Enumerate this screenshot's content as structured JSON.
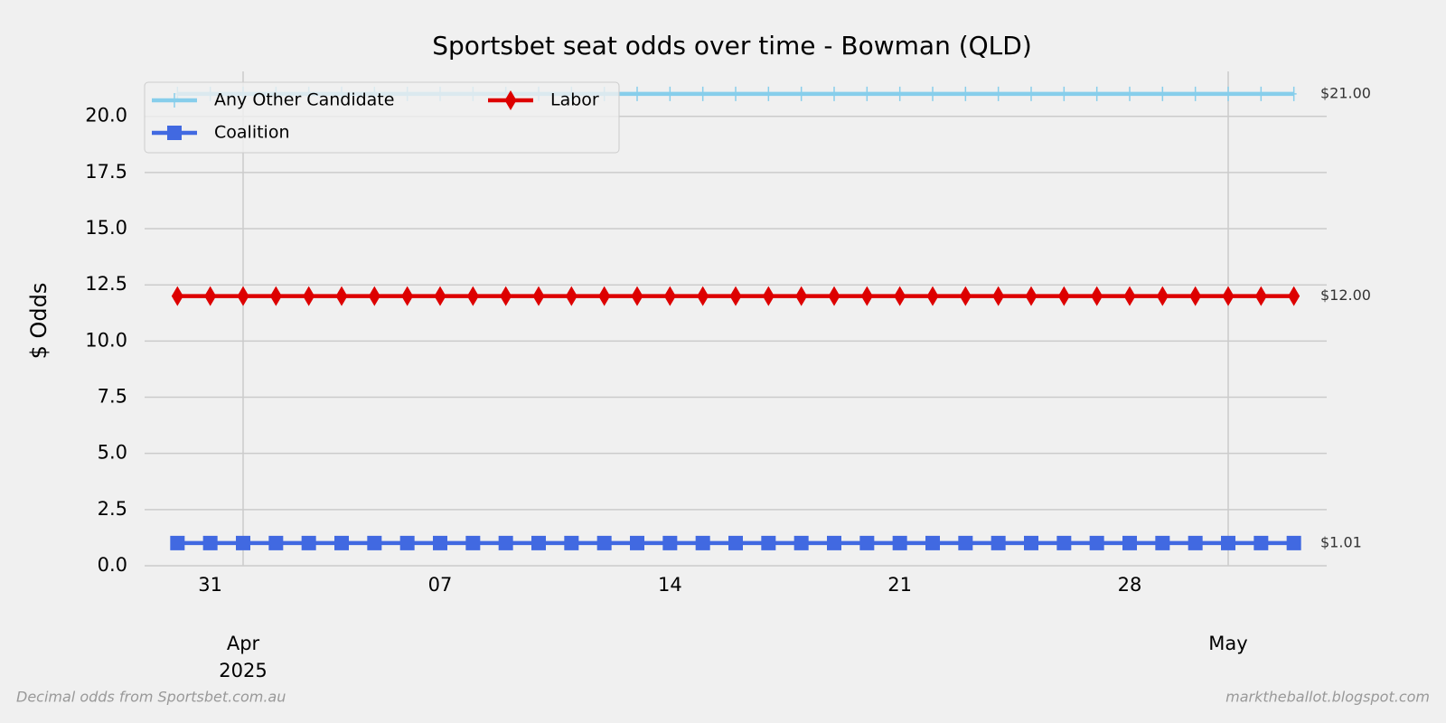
{
  "chart_data": {
    "type": "line",
    "title": "Sportsbet seat odds over time - Bowman (QLD)",
    "ylabel": "$ Odds",
    "footer_left": "Decimal odds from Sportsbet.com.au",
    "footer_right": "marktheballot.blogspot.com",
    "x": [
      "2025-03-30",
      "2025-03-31",
      "2025-04-01",
      "2025-04-02",
      "2025-04-03",
      "2025-04-04",
      "2025-04-05",
      "2025-04-06",
      "2025-04-07",
      "2025-04-08",
      "2025-04-09",
      "2025-04-10",
      "2025-04-11",
      "2025-04-12",
      "2025-04-13",
      "2025-04-14",
      "2025-04-15",
      "2025-04-16",
      "2025-04-17",
      "2025-04-18",
      "2025-04-19",
      "2025-04-20",
      "2025-04-21",
      "2025-04-22",
      "2025-04-23",
      "2025-04-24",
      "2025-04-25",
      "2025-04-26",
      "2025-04-27",
      "2025-04-28",
      "2025-04-29",
      "2025-04-30",
      "2025-05-01",
      "2025-05-02",
      "2025-05-03"
    ],
    "series": [
      {
        "name": "Any Other Candidate",
        "color": "#87ceeb",
        "marker": "plus",
        "values": [
          21,
          21,
          21,
          21,
          21,
          21,
          21,
          21,
          21,
          21,
          21,
          21,
          21,
          21,
          21,
          21,
          21,
          21,
          21,
          21,
          21,
          21,
          21,
          21,
          21,
          21,
          21,
          21,
          21,
          21,
          21,
          21,
          21,
          21,
          21
        ],
        "end_label": "$21.00"
      },
      {
        "name": "Coalition",
        "color": "#4169e1",
        "marker": "square",
        "values": [
          1.01,
          1.01,
          1.01,
          1.01,
          1.01,
          1.01,
          1.01,
          1.01,
          1.01,
          1.01,
          1.01,
          1.01,
          1.01,
          1.01,
          1.01,
          1.01,
          1.01,
          1.01,
          1.01,
          1.01,
          1.01,
          1.01,
          1.01,
          1.01,
          1.01,
          1.01,
          1.01,
          1.01,
          1.01,
          1.01,
          1.01,
          1.01,
          1.01,
          1.01,
          1.01
        ],
        "end_label": "$1.01"
      },
      {
        "name": "Labor",
        "color": "#dd0000",
        "marker": "diamond",
        "values": [
          12,
          12,
          12,
          12,
          12,
          12,
          12,
          12,
          12,
          12,
          12,
          12,
          12,
          12,
          12,
          12,
          12,
          12,
          12,
          12,
          12,
          12,
          12,
          12,
          12,
          12,
          12,
          12,
          12,
          12,
          12,
          12,
          12,
          12,
          12
        ],
        "end_label": "$12.00"
      }
    ],
    "xlim": [
      "2025-03-29",
      "2025-05-04"
    ],
    "xticks": [
      {
        "value": "2025-03-31",
        "label": "31"
      },
      {
        "value": "2025-04-07",
        "label": "07"
      },
      {
        "value": "2025-04-14",
        "label": "14"
      },
      {
        "value": "2025-04-21",
        "label": "21"
      },
      {
        "value": "2025-04-28",
        "label": "28"
      }
    ],
    "xticks_major": [
      {
        "value": "2025-04-01",
        "label": "Apr",
        "year": "2025"
      },
      {
        "value": "2025-05-01",
        "label": "May"
      }
    ],
    "ylim": [
      0,
      22
    ],
    "yticks": [
      {
        "value": 0,
        "label": "0.0"
      },
      {
        "value": 2.5,
        "label": "2.5"
      },
      {
        "value": 5,
        "label": "5.0"
      },
      {
        "value": 7.5,
        "label": "7.5"
      },
      {
        "value": 10,
        "label": "10.0"
      },
      {
        "value": 12.5,
        "label": "12.5"
      },
      {
        "value": 15,
        "label": "15.0"
      },
      {
        "value": 17.5,
        "label": "17.5"
      },
      {
        "value": 20,
        "label": "20.0"
      }
    ],
    "grid": true,
    "legend": "upper left"
  }
}
